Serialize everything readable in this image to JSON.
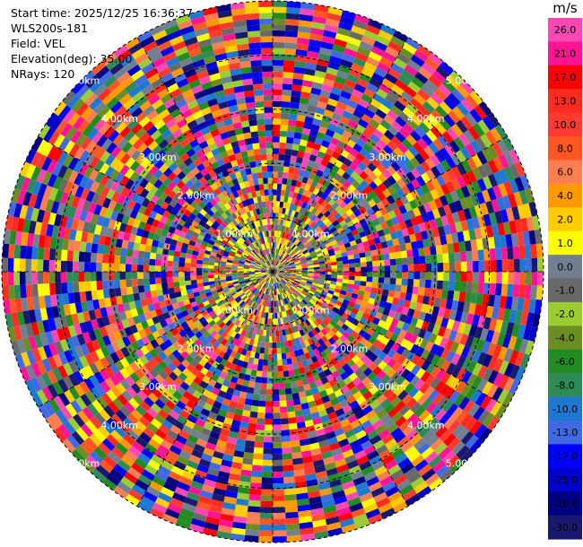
{
  "info": {
    "start_time": "Start time: 2025/12/25 16:36:37",
    "site": "WLS200s-181",
    "field": "Field: VEL",
    "elevation": "Elevation(deg): 35.00",
    "nrays": "NRays: 120"
  },
  "chart_data": {
    "type": "heatmap",
    "projection": "polar PPI",
    "field": "VEL",
    "nrays": 120,
    "range_rings_km": [
      "1.00km",
      "2.00km",
      "3.00km",
      "4.00km",
      "5.00km"
    ],
    "colorbar": {
      "unit": "m/s",
      "ticks": [
        "26.0",
        "21.0",
        "17.0",
        "13.0",
        "10.0",
        "8.0",
        "6.0",
        "4.0",
        "2.0",
        "1.0",
        "0.0",
        "-1.0",
        "-2.0",
        "-4.0",
        "-6.0",
        "-8.0",
        "-10.0",
        "-13.0",
        "-17.0",
        "-21.0",
        "-26.0",
        "-30.0"
      ],
      "colors": [
        "#ff47b4",
        "#ff1493",
        "#ff0000",
        "#ff2b1f",
        "#ff3b2f",
        "#ff5722",
        "#ff7f50",
        "#ff9900",
        "#ffcc00",
        "#ffff00",
        "#708090",
        "#696969",
        "#9acd32",
        "#6b8e23",
        "#228b22",
        "#2e8b57",
        "#1e78d2",
        "#4169e1",
        "#0000ff",
        "#0000cd",
        "#000080",
        "#191970"
      ]
    }
  }
}
